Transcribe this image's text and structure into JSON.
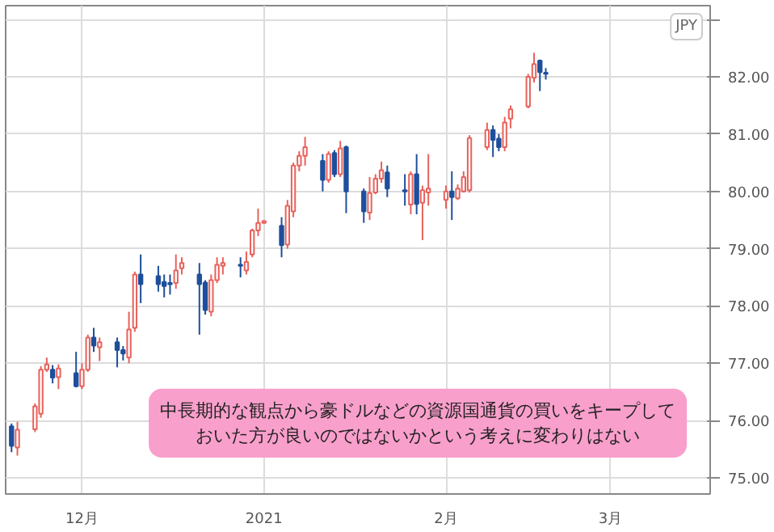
{
  "chart_data": {
    "type": "candlestick",
    "ylabel": "JPY",
    "annotations": [
      "中長期的な観点から豪ドルなどの資源国通貨の買いをキープしておいた方が良いのではないかという考えに変わりはない"
    ],
    "x": [
      "2020-11-19",
      "2020-11-20",
      "2020-11-23",
      "2020-11-24",
      "2020-11-25",
      "2020-11-26",
      "2020-11-27",
      "2020-11-30",
      "2020-12-01",
      "2020-12-02",
      "2020-12-03",
      "2020-12-04",
      "2020-12-07",
      "2020-12-08",
      "2020-12-09",
      "2020-12-10",
      "2020-12-11",
      "2020-12-14",
      "2020-12-15",
      "2020-12-16",
      "2020-12-17",
      "2020-12-18",
      "2020-12-21",
      "2020-12-22",
      "2020-12-23",
      "2020-12-24",
      "2020-12-25",
      "2020-12-28",
      "2020-12-29",
      "2020-12-30",
      "2020-12-31",
      "2021-01-01",
      "2021-01-04",
      "2021-01-05",
      "2021-01-06",
      "2021-01-07",
      "2021-01-08",
      "2021-01-11",
      "2021-01-12",
      "2021-01-13",
      "2021-01-14",
      "2021-01-15",
      "2021-01-18",
      "2021-01-19",
      "2021-01-20",
      "2021-01-21",
      "2021-01-22",
      "2021-01-25",
      "2021-01-26",
      "2021-01-27",
      "2021-01-28",
      "2021-01-29",
      "2021-02-01",
      "2021-02-02",
      "2021-02-03",
      "2021-02-04",
      "2021-02-05",
      "2021-02-08",
      "2021-02-09",
      "2021-02-10",
      "2021-02-11",
      "2021-02-12",
      "2021-02-15",
      "2021-02-16",
      "2021-02-17",
      "2021-02-18"
    ],
    "ohlc": [
      [
        75.9,
        75.95,
        75.45,
        75.56
      ],
      [
        75.53,
        75.98,
        75.39,
        75.84
      ],
      [
        75.85,
        76.3,
        75.8,
        76.25
      ],
      [
        76.12,
        76.95,
        76.05,
        76.89
      ],
      [
        76.89,
        77.1,
        76.85,
        76.98
      ],
      [
        76.89,
        76.97,
        76.65,
        76.75
      ],
      [
        76.76,
        76.98,
        76.55,
        76.91
      ],
      [
        76.83,
        77.2,
        76.58,
        76.6
      ],
      [
        76.6,
        77.0,
        76.55,
        76.89
      ],
      [
        76.89,
        77.5,
        76.85,
        77.45
      ],
      [
        77.45,
        77.62,
        77.2,
        77.31
      ],
      [
        77.28,
        77.45,
        77.04,
        77.37
      ],
      [
        77.37,
        77.45,
        76.93,
        77.23
      ],
      [
        77.23,
        77.3,
        77.05,
        77.17
      ],
      [
        77.1,
        77.9,
        77.0,
        77.59
      ],
      [
        77.62,
        78.6,
        77.55,
        78.55
      ],
      [
        78.55,
        78.9,
        78.05,
        78.38
      ],
      [
        78.52,
        78.7,
        78.25,
        78.38
      ],
      [
        78.42,
        78.55,
        78.15,
        78.35
      ],
      [
        78.4,
        78.55,
        78.2,
        78.38
      ],
      [
        78.4,
        78.9,
        78.3,
        78.62
      ],
      [
        78.66,
        78.85,
        78.55,
        78.75
      ],
      [
        78.55,
        78.75,
        77.5,
        78.38
      ],
      [
        78.41,
        78.45,
        77.85,
        77.93
      ],
      [
        77.9,
        78.55,
        77.82,
        78.45
      ],
      [
        78.45,
        78.85,
        78.4,
        78.72
      ],
      [
        78.7,
        78.85,
        78.55,
        78.75
      ],
      [
        78.72,
        78.85,
        78.5,
        78.7
      ],
      [
        78.62,
        78.95,
        78.55,
        78.77
      ],
      [
        78.9,
        79.35,
        78.85,
        79.32
      ],
      [
        79.32,
        79.7,
        79.22,
        79.45
      ],
      [
        79.45,
        79.5,
        79.45,
        79.48
      ],
      [
        79.4,
        79.55,
        78.85,
        79.06
      ],
      [
        79.07,
        79.85,
        79.0,
        79.75
      ],
      [
        79.65,
        80.5,
        79.55,
        80.45
      ],
      [
        80.45,
        80.7,
        80.35,
        80.62
      ],
      [
        80.62,
        80.95,
        80.45,
        80.77
      ],
      [
        80.53,
        80.65,
        80.0,
        80.2
      ],
      [
        80.2,
        80.7,
        80.15,
        80.65
      ],
      [
        80.67,
        80.72,
        80.25,
        80.3
      ],
      [
        80.3,
        80.88,
        80.25,
        80.75
      ],
      [
        80.77,
        80.8,
        79.62,
        80.0
      ],
      [
        80.0,
        80.05,
        79.45,
        79.65
      ],
      [
        79.63,
        80.25,
        79.5,
        79.97
      ],
      [
        79.98,
        80.3,
        79.95,
        80.22
      ],
      [
        80.22,
        80.52,
        80.15,
        80.37
      ],
      [
        80.33,
        80.45,
        79.9,
        80.05
      ],
      [
        80.02,
        80.3,
        79.75,
        80.0
      ],
      [
        79.77,
        80.35,
        79.6,
        80.3
      ],
      [
        80.3,
        80.65,
        79.6,
        79.78
      ],
      [
        79.8,
        80.1,
        79.15,
        80.02
      ],
      [
        79.98,
        80.65,
        79.75,
        80.05
      ],
      [
        79.85,
        80.1,
        79.7,
        80.0
      ],
      [
        80.0,
        80.35,
        79.5,
        79.9
      ],
      [
        79.88,
        80.12,
        79.85,
        80.05
      ],
      [
        80.0,
        80.35,
        79.98,
        80.25
      ],
      [
        80.02,
        80.98,
        79.98,
        80.93
      ],
      [
        80.77,
        81.2,
        80.72,
        81.07
      ],
      [
        81.07,
        81.15,
        80.6,
        80.9
      ],
      [
        80.92,
        81.0,
        80.7,
        80.77
      ],
      [
        80.77,
        81.3,
        80.7,
        81.2
      ],
      [
        81.27,
        81.5,
        81.1,
        81.43
      ],
      [
        81.48,
        82.05,
        81.45,
        82.0
      ],
      [
        81.98,
        82.42,
        81.9,
        82.22
      ],
      [
        82.28,
        82.3,
        81.75,
        82.08
      ],
      [
        82.07,
        82.15,
        81.95,
        82.05
      ]
    ],
    "colors": [
      "#1e4f9c",
      "#e8615b",
      "#e8615b",
      "#e8615b",
      "#e8615b",
      "#1e4f9c",
      "#e8615b",
      "#1e4f9c",
      "#e8615b",
      "#e8615b",
      "#1e4f9c",
      "#e8615b",
      "#1e4f9c",
      "#1e4f9c",
      "#e8615b",
      "#e8615b",
      "#1e4f9c",
      "#1e4f9c",
      "#1e4f9c",
      "#1e4f9c",
      "#e8615b",
      "#e8615b",
      "#1e4f9c",
      "#1e4f9c",
      "#e8615b",
      "#e8615b",
      "#e8615b",
      "#1e4f9c",
      "#e8615b",
      "#e8615b",
      "#e8615b",
      "#e8615b",
      "#1e4f9c",
      "#e8615b",
      "#e8615b",
      "#e8615b",
      "#e8615b",
      "#1e4f9c",
      "#e8615b",
      "#1e4f9c",
      "#e8615b",
      "#1e4f9c",
      "#1e4f9c",
      "#e8615b",
      "#e8615b",
      "#e8615b",
      "#1e4f9c",
      "#1e4f9c",
      "#e8615b",
      "#1e4f9c",
      "#e8615b",
      "#e8615b",
      "#e8615b",
      "#1e4f9c",
      "#e8615b",
      "#e8615b",
      "#e8615b",
      "#e8615b",
      "#1e4f9c",
      "#1e4f9c",
      "#e8615b",
      "#e8615b",
      "#e8615b",
      "#e8615b",
      "#1e4f9c",
      "#1e4f9c"
    ],
    "xlim": [
      "2020-11-18",
      "2021-03-18"
    ],
    "xticks": [
      {
        "value": "2020-12-01",
        "label": "12月"
      },
      {
        "value": "2021-01-01",
        "label": "2021"
      },
      {
        "value": "2021-02-01",
        "label": "2月"
      },
      {
        "value": "2021-03-01",
        "label": "3月"
      }
    ],
    "ylim": [
      74.72,
      83.24
    ],
    "yticks": [
      {
        "value": 75,
        "label": "75.00"
      },
      {
        "value": 76,
        "label": "76.00"
      },
      {
        "value": 77,
        "label": "77.00"
      },
      {
        "value": 78,
        "label": "78.00"
      },
      {
        "value": 79,
        "label": "79.00"
      },
      {
        "value": 80,
        "label": "80.00"
      },
      {
        "value": 81,
        "label": "81.00"
      },
      {
        "value": 82,
        "label": "82.00"
      },
      {
        "value": 83,
        "label": null
      }
    ],
    "grid": true
  }
}
